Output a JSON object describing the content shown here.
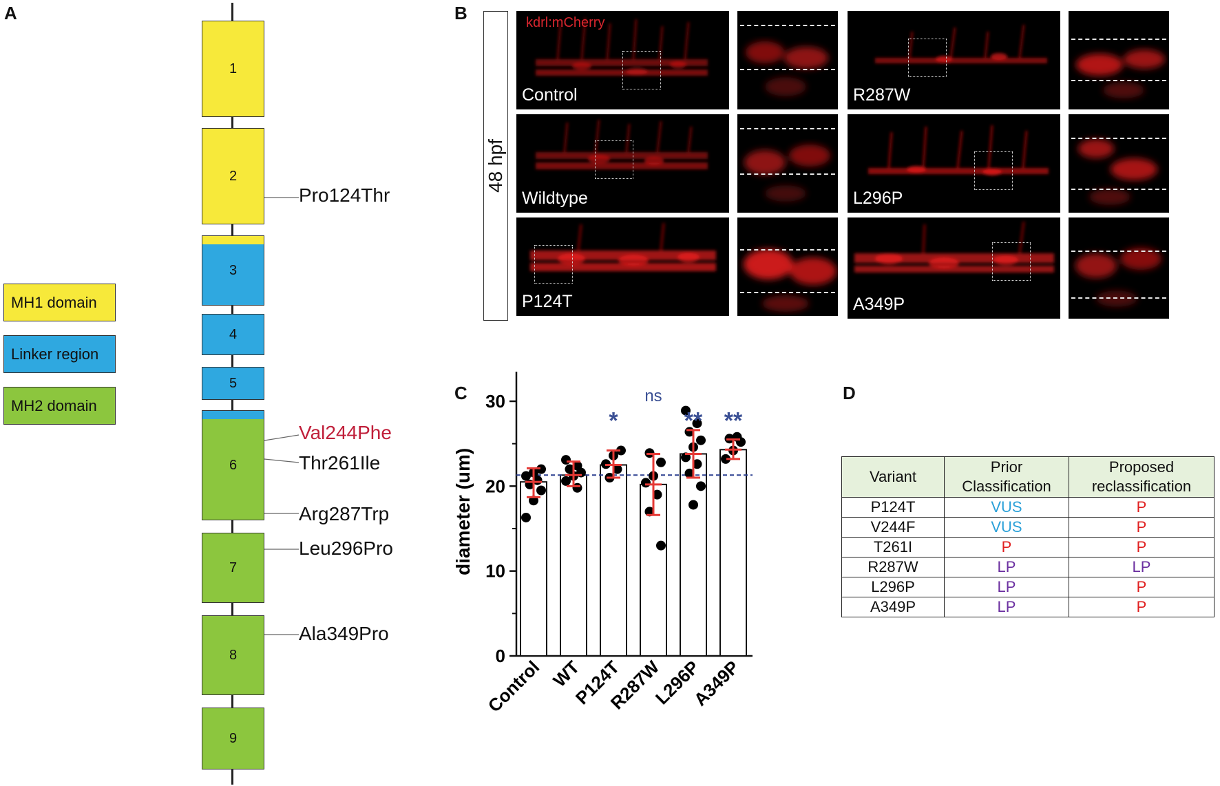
{
  "panels": {
    "a": "A",
    "b": "B",
    "c": "C",
    "d": "D"
  },
  "colors": {
    "mh1": "#f7e93a",
    "linker": "#2fa8e0",
    "mh2": "#8cc63e",
    "red_variant": "#c01f3a",
    "vus": "#2aa0d8",
    "p": "#e02020",
    "lp": "#6b2fa0",
    "stars": "#3a4f94",
    "errorbar": "#e53935",
    "refline": "#2b3f8f"
  },
  "panel_a": {
    "legend": [
      {
        "label": "MH1 domain",
        "color": "#f7e93a"
      },
      {
        "label": "Linker region",
        "color": "#2fa8e0"
      },
      {
        "label": "MH2 domain",
        "color": "#8cc63e"
      }
    ],
    "exons": [
      "1",
      "2",
      "3",
      "4",
      "5",
      "6",
      "7",
      "8",
      "9"
    ],
    "mutations": [
      {
        "label": "Pro124Thr",
        "exon": "2",
        "color": "#111111"
      },
      {
        "label": "Val244Phe",
        "exon": "6",
        "color": "#c01f3a"
      },
      {
        "label": "Thr261Ile",
        "exon": "6",
        "color": "#111111"
      },
      {
        "label": "Arg287Trp",
        "exon": "6",
        "color": "#111111"
      },
      {
        "label": "Leu296Pro",
        "exon": "7",
        "color": "#111111"
      },
      {
        "label": "Ala349Pro",
        "exon": "8",
        "color": "#111111"
      }
    ]
  },
  "panel_b": {
    "timepoint": "48 hpf",
    "reporter": "kdrl:mCherry",
    "images": [
      "Control",
      "Wildtype",
      "P124T",
      "R287W",
      "L296P",
      "A349P"
    ]
  },
  "chart_data": {
    "type": "bar",
    "categories": [
      "Control",
      "WT",
      "P124T",
      "R287W",
      "L296P",
      "A349P"
    ],
    "values": [
      20.5,
      21.3,
      22.5,
      20.2,
      23.8,
      24.3
    ],
    "error": [
      [
        18.7,
        22.1
      ],
      [
        20.0,
        22.9
      ],
      [
        21.0,
        24.2
      ],
      [
        16.6,
        23.8
      ],
      [
        21.0,
        26.6
      ],
      [
        23.2,
        25.5
      ]
    ],
    "points": [
      [
        16.3,
        18.3,
        19.5,
        20.2,
        20.7,
        21.2,
        21.6,
        22.0
      ],
      [
        19.8,
        20.6,
        21.2,
        21.6,
        22.0,
        22.4,
        23.1
      ],
      [
        21.0,
        22.0,
        22.6,
        23.6,
        24.2
      ],
      [
        13.0,
        17.0,
        19.0,
        20.4,
        21.2,
        22.8,
        23.9
      ],
      [
        17.8,
        20.0,
        21.5,
        22.6,
        23.4,
        24.6,
        25.4,
        26.4,
        27.4,
        28.9
      ],
      [
        23.2,
        24.2,
        25.2,
        25.6,
        25.8
      ]
    ],
    "significance": [
      "",
      "",
      "*",
      "ns",
      "**",
      "**"
    ],
    "reference_line": 21.3,
    "ylabel": "diameter (um)",
    "ylim": [
      0,
      35
    ],
    "yticks": [
      0,
      10,
      20,
      30
    ]
  },
  "panel_d": {
    "headers": [
      "Variant",
      "Prior Classification",
      "Proposed reclassification"
    ],
    "rows": [
      {
        "variant": "P124T",
        "prior": "VUS",
        "prior_color": "#2aa0d8",
        "proposed": "P",
        "proposed_color": "#e02020"
      },
      {
        "variant": "V244F",
        "prior": "VUS",
        "prior_color": "#2aa0d8",
        "proposed": "P",
        "proposed_color": "#e02020"
      },
      {
        "variant": "T261I",
        "prior": "P",
        "prior_color": "#e02020",
        "proposed": "P",
        "proposed_color": "#e02020"
      },
      {
        "variant": "R287W",
        "prior": "LP",
        "prior_color": "#6b2fa0",
        "proposed": "LP",
        "proposed_color": "#6b2fa0"
      },
      {
        "variant": "L296P",
        "prior": "LP",
        "prior_color": "#6b2fa0",
        "proposed": "P",
        "proposed_color": "#e02020"
      },
      {
        "variant": "A349P",
        "prior": "LP",
        "prior_color": "#6b2fa0",
        "proposed": "P",
        "proposed_color": "#e02020"
      }
    ]
  }
}
